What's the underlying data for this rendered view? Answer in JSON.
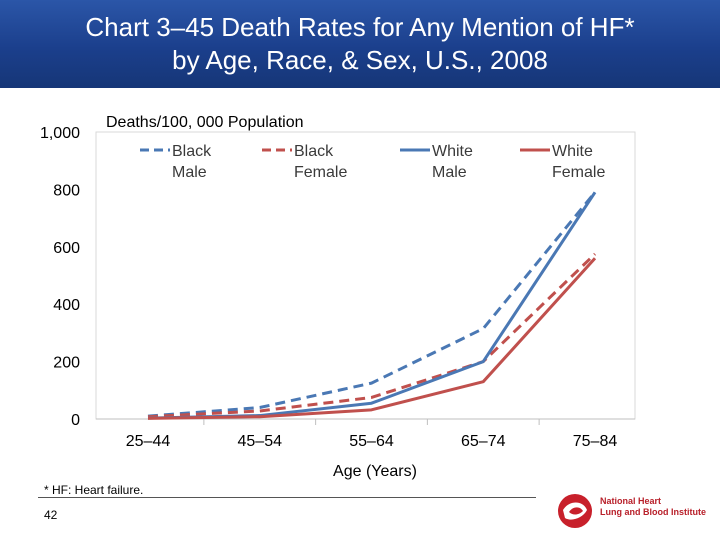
{
  "slide": {
    "title_line1": "Chart 3–45 Death Rates for Any Mention of HF*",
    "title_line2": "by Age, Race, & Sex, U.S., 2008",
    "footnote": "* HF: Heart failure.",
    "page_number": "42",
    "logo_line1": "National Heart",
    "logo_line2": "Lung and Blood Institute"
  },
  "colors": {
    "banner": "#1b3f8c",
    "male": "#4a78b4",
    "female": "#c0504d",
    "grid": "#d9d9d9",
    "axis_text": "#000000"
  },
  "chart_data": {
    "type": "line",
    "title": "",
    "ylabel": "Deaths/100, 000 Population",
    "xlabel": "Age (Years)",
    "categories": [
      "25–44",
      "45–54",
      "55–64",
      "65–74",
      "75–84"
    ],
    "ylim": [
      0,
      1000
    ],
    "yticks": [
      0,
      200,
      400,
      600,
      800,
      1000
    ],
    "ytick_labels": [
      "0",
      "200",
      "400",
      "600",
      "800",
      "1,000"
    ],
    "legend_position": "top",
    "grid": false,
    "series": [
      {
        "name": "Black Male",
        "legend_line1": "Black",
        "legend_line2": "Male",
        "color": "#4a78b4",
        "dashed": true,
        "values": [
          10,
          40,
          125,
          315,
          790
        ]
      },
      {
        "name": "Black Female",
        "legend_line1": "Black",
        "legend_line2": "Female",
        "color": "#c0504d",
        "dashed": true,
        "values": [
          8,
          28,
          75,
          200,
          575
        ]
      },
      {
        "name": "White Male",
        "legend_line1": "White",
        "legend_line2": "Male",
        "color": "#4a78b4",
        "dashed": false,
        "values": [
          3,
          12,
          55,
          200,
          790
        ]
      },
      {
        "name": "White Female",
        "legend_line1": "White",
        "legend_line2": "Female",
        "color": "#c0504d",
        "dashed": false,
        "values": [
          2,
          8,
          32,
          130,
          560
        ]
      }
    ]
  }
}
